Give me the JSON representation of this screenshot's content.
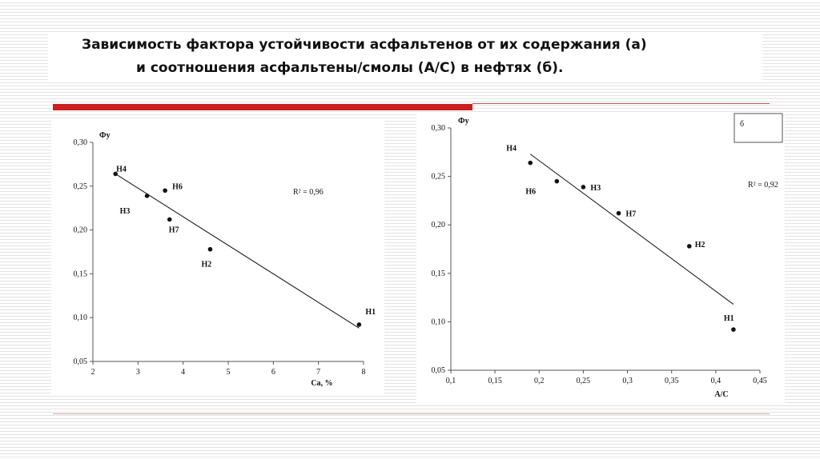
{
  "title": {
    "line1": "Зависимость фактора устойчивости асфальтенов от их содержания (а)",
    "line2": "и соотношения асфальтены/смолы (А/С) в нефтях (б)."
  },
  "chart_data": [
    {
      "type": "scatter",
      "ylabel": "Фу",
      "xlabel": "Са, %",
      "xlim": [
        2,
        8
      ],
      "ylim": [
        0.05,
        0.3
      ],
      "xticks": [
        "2",
        "3",
        "4",
        "5",
        "6",
        "7",
        "8"
      ],
      "yticks": [
        "0,05",
        "0,10",
        "0,15",
        "0,20",
        "0,25",
        "0,30"
      ],
      "annotation": "R² = 0,96",
      "points": [
        {
          "label": "Н4",
          "x": 2.5,
          "y": 0.264
        },
        {
          "label": "Н3",
          "x": 3.2,
          "y": 0.239
        },
        {
          "label": "Н6",
          "x": 3.6,
          "y": 0.245
        },
        {
          "label": "Н7",
          "x": 3.7,
          "y": 0.212
        },
        {
          "label": "Н2",
          "x": 4.6,
          "y": 0.178
        },
        {
          "label": "Н1",
          "x": 7.9,
          "y": 0.092
        }
      ],
      "trendline": [
        [
          2.5,
          0.264
        ],
        [
          7.9,
          0.088
        ]
      ],
      "grid": false
    },
    {
      "type": "scatter",
      "ylabel": "Фу",
      "xlabel": "А/С",
      "legend": "б",
      "xlim": [
        0.1,
        0.45
      ],
      "ylim": [
        0.05,
        0.3
      ],
      "xticks": [
        "0,1",
        "0,15",
        "0,2",
        "0,25",
        "0,3",
        "0,35",
        "0,4",
        "0,45"
      ],
      "yticks": [
        "0,05",
        "0,10",
        "0,15",
        "0,20",
        "0,25",
        "0,30"
      ],
      "annotation": "R² = 0,92",
      "points": [
        {
          "label": "Н4",
          "x": 0.19,
          "y": 0.264
        },
        {
          "label": "Н6",
          "x": 0.22,
          "y": 0.245
        },
        {
          "label": "Н3",
          "x": 0.25,
          "y": 0.239
        },
        {
          "label": "Н7",
          "x": 0.29,
          "y": 0.212
        },
        {
          "label": "Н2",
          "x": 0.37,
          "y": 0.178
        },
        {
          "label": "Н1",
          "x": 0.42,
          "y": 0.092
        }
      ],
      "trendline": [
        [
          0.19,
          0.273
        ],
        [
          0.42,
          0.118
        ]
      ],
      "grid": false
    }
  ]
}
